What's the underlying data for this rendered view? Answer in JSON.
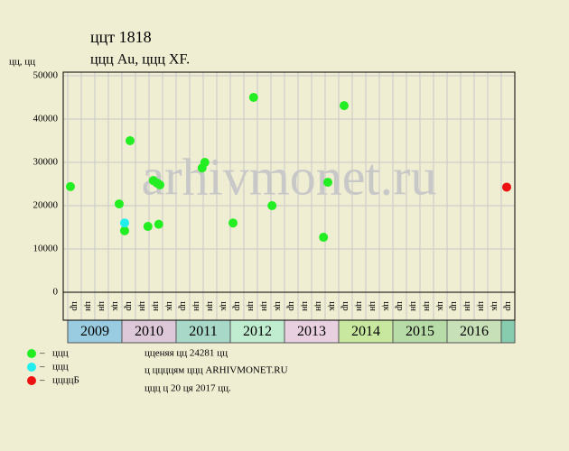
{
  "chart_data": {
    "type": "scatter",
    "title": "ццт 1818",
    "subtitle": "ццц Au, ццц XF.",
    "y_label": "цц, цц",
    "watermark": "arhivmonet.ru",
    "xlim": [
      2008.917,
      2017.25
    ],
    "ylim": [
      0,
      50000
    ],
    "yticks": [
      0,
      10000,
      20000,
      30000,
      40000,
      50000
    ],
    "xticks": [
      2009,
      2010,
      2011,
      2012,
      2013,
      2014,
      2015,
      2016
    ],
    "band_colors": [
      "#99cce0",
      "#dcc8d8",
      "#a8d8c8",
      "#c0ecd0",
      "#e8d0e0",
      "#c8e8a0",
      "#b8dca8",
      "#c8e0b8"
    ],
    "quarter_labels": [
      "цр",
      "цн",
      "цн",
      "цк"
    ],
    "grid": true,
    "series": [
      {
        "name": "ццц",
        "color": "#22ee22",
        "x": [
          2009.05,
          2009.95,
          2010.05,
          2010.15,
          2010.48,
          2010.58,
          2010.65,
          2010.7,
          2010.68,
          2011.48,
          2011.53,
          2012.05,
          2012.43,
          2012.77,
          2013.72,
          2013.8,
          2014.1
        ],
        "values": [
          24400,
          20400,
          14200,
          35000,
          15200,
          25800,
          25200,
          24800,
          15700,
          28700,
          30000,
          16000,
          45000,
          20000,
          12700,
          25400,
          43100
        ]
      },
      {
        "name": "ццц",
        "color": "#22eeee",
        "x": [
          2010.05
        ],
        "values": [
          16000
        ]
      },
      {
        "name": "ццццБ",
        "color": "#ee1111",
        "x": [
          2017.1
        ],
        "values": [
          24281
        ]
      }
    ],
    "notes": [
      "цценяя цц 24281 цц",
      "ц ццццям ццц ARHIVMONET.RU",
      "ццц ц 20 ця 2017 цц."
    ]
  }
}
